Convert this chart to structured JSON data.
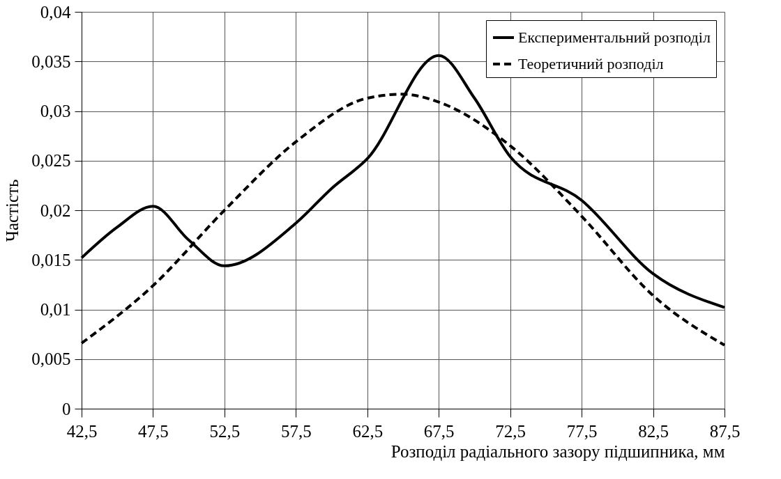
{
  "chart_data": {
    "type": "line",
    "xlabel": "Розподіл радіального зазору підшипника, мм",
    "ylabel": "Частість",
    "xlim": [
      42.5,
      87.5
    ],
    "xticks": [
      {
        "value": 42.5,
        "label": "42,5"
      },
      {
        "value": 47.5,
        "label": "47,5"
      },
      {
        "value": 52.5,
        "label": "52,5"
      },
      {
        "value": 57.5,
        "label": "57,5"
      },
      {
        "value": 62.5,
        "label": "62,5"
      },
      {
        "value": 67.5,
        "label": "67,5"
      },
      {
        "value": 72.5,
        "label": "72,5"
      },
      {
        "value": 77.5,
        "label": "77,5"
      },
      {
        "value": 82.5,
        "label": "82,5"
      },
      {
        "value": 87.5,
        "label": "87,5"
      }
    ],
    "ylim": [
      0,
      0.04
    ],
    "yticks": [
      0,
      {
        "value": 0.005,
        "label": "0,005"
      },
      {
        "value": 0.01,
        "label": "0,01"
      },
      {
        "value": 0.015,
        "label": "0,015"
      },
      {
        "value": 0.02,
        "label": "0,02"
      },
      {
        "value": 0.025,
        "label": "0,025"
      },
      {
        "value": 0.03,
        "label": "0,03"
      },
      {
        "value": 0.035,
        "label": "0,035"
      },
      {
        "value": 0.04,
        "label": "0,04"
      }
    ],
    "grid": true,
    "legend": "top right",
    "marker": "none",
    "series": [
      {
        "name": "Експериментальний розподіл",
        "color": "#000000",
        "line_style": "solid",
        "x": [
          42.5,
          45,
          47.5,
          50,
          52.5,
          57.5,
          60,
          62.5,
          67.5,
          70,
          72.5,
          77.5,
          82.5,
          87.5
        ],
        "values": [
          0.0152,
          0.0183,
          0.0204,
          0.017,
          0.0144,
          0.0187,
          0.0222,
          0.0252,
          0.0356,
          0.0313,
          0.0254,
          0.021,
          0.0136,
          0.0102
        ]
      },
      {
        "name": "Теоретичний розподіл",
        "color": "#000000",
        "line_style": "dashed",
        "x": [
          42.5,
          47.5,
          52.5,
          57.5,
          62.5,
          65,
          67.5,
          72.5,
          77.5,
          82.5,
          87.5
        ],
        "values": [
          0.0066,
          0.0124,
          0.02,
          0.0269,
          0.0313,
          0.0317,
          0.0309,
          0.0265,
          0.0194,
          0.0114,
          0.0064
        ]
      }
    ]
  }
}
